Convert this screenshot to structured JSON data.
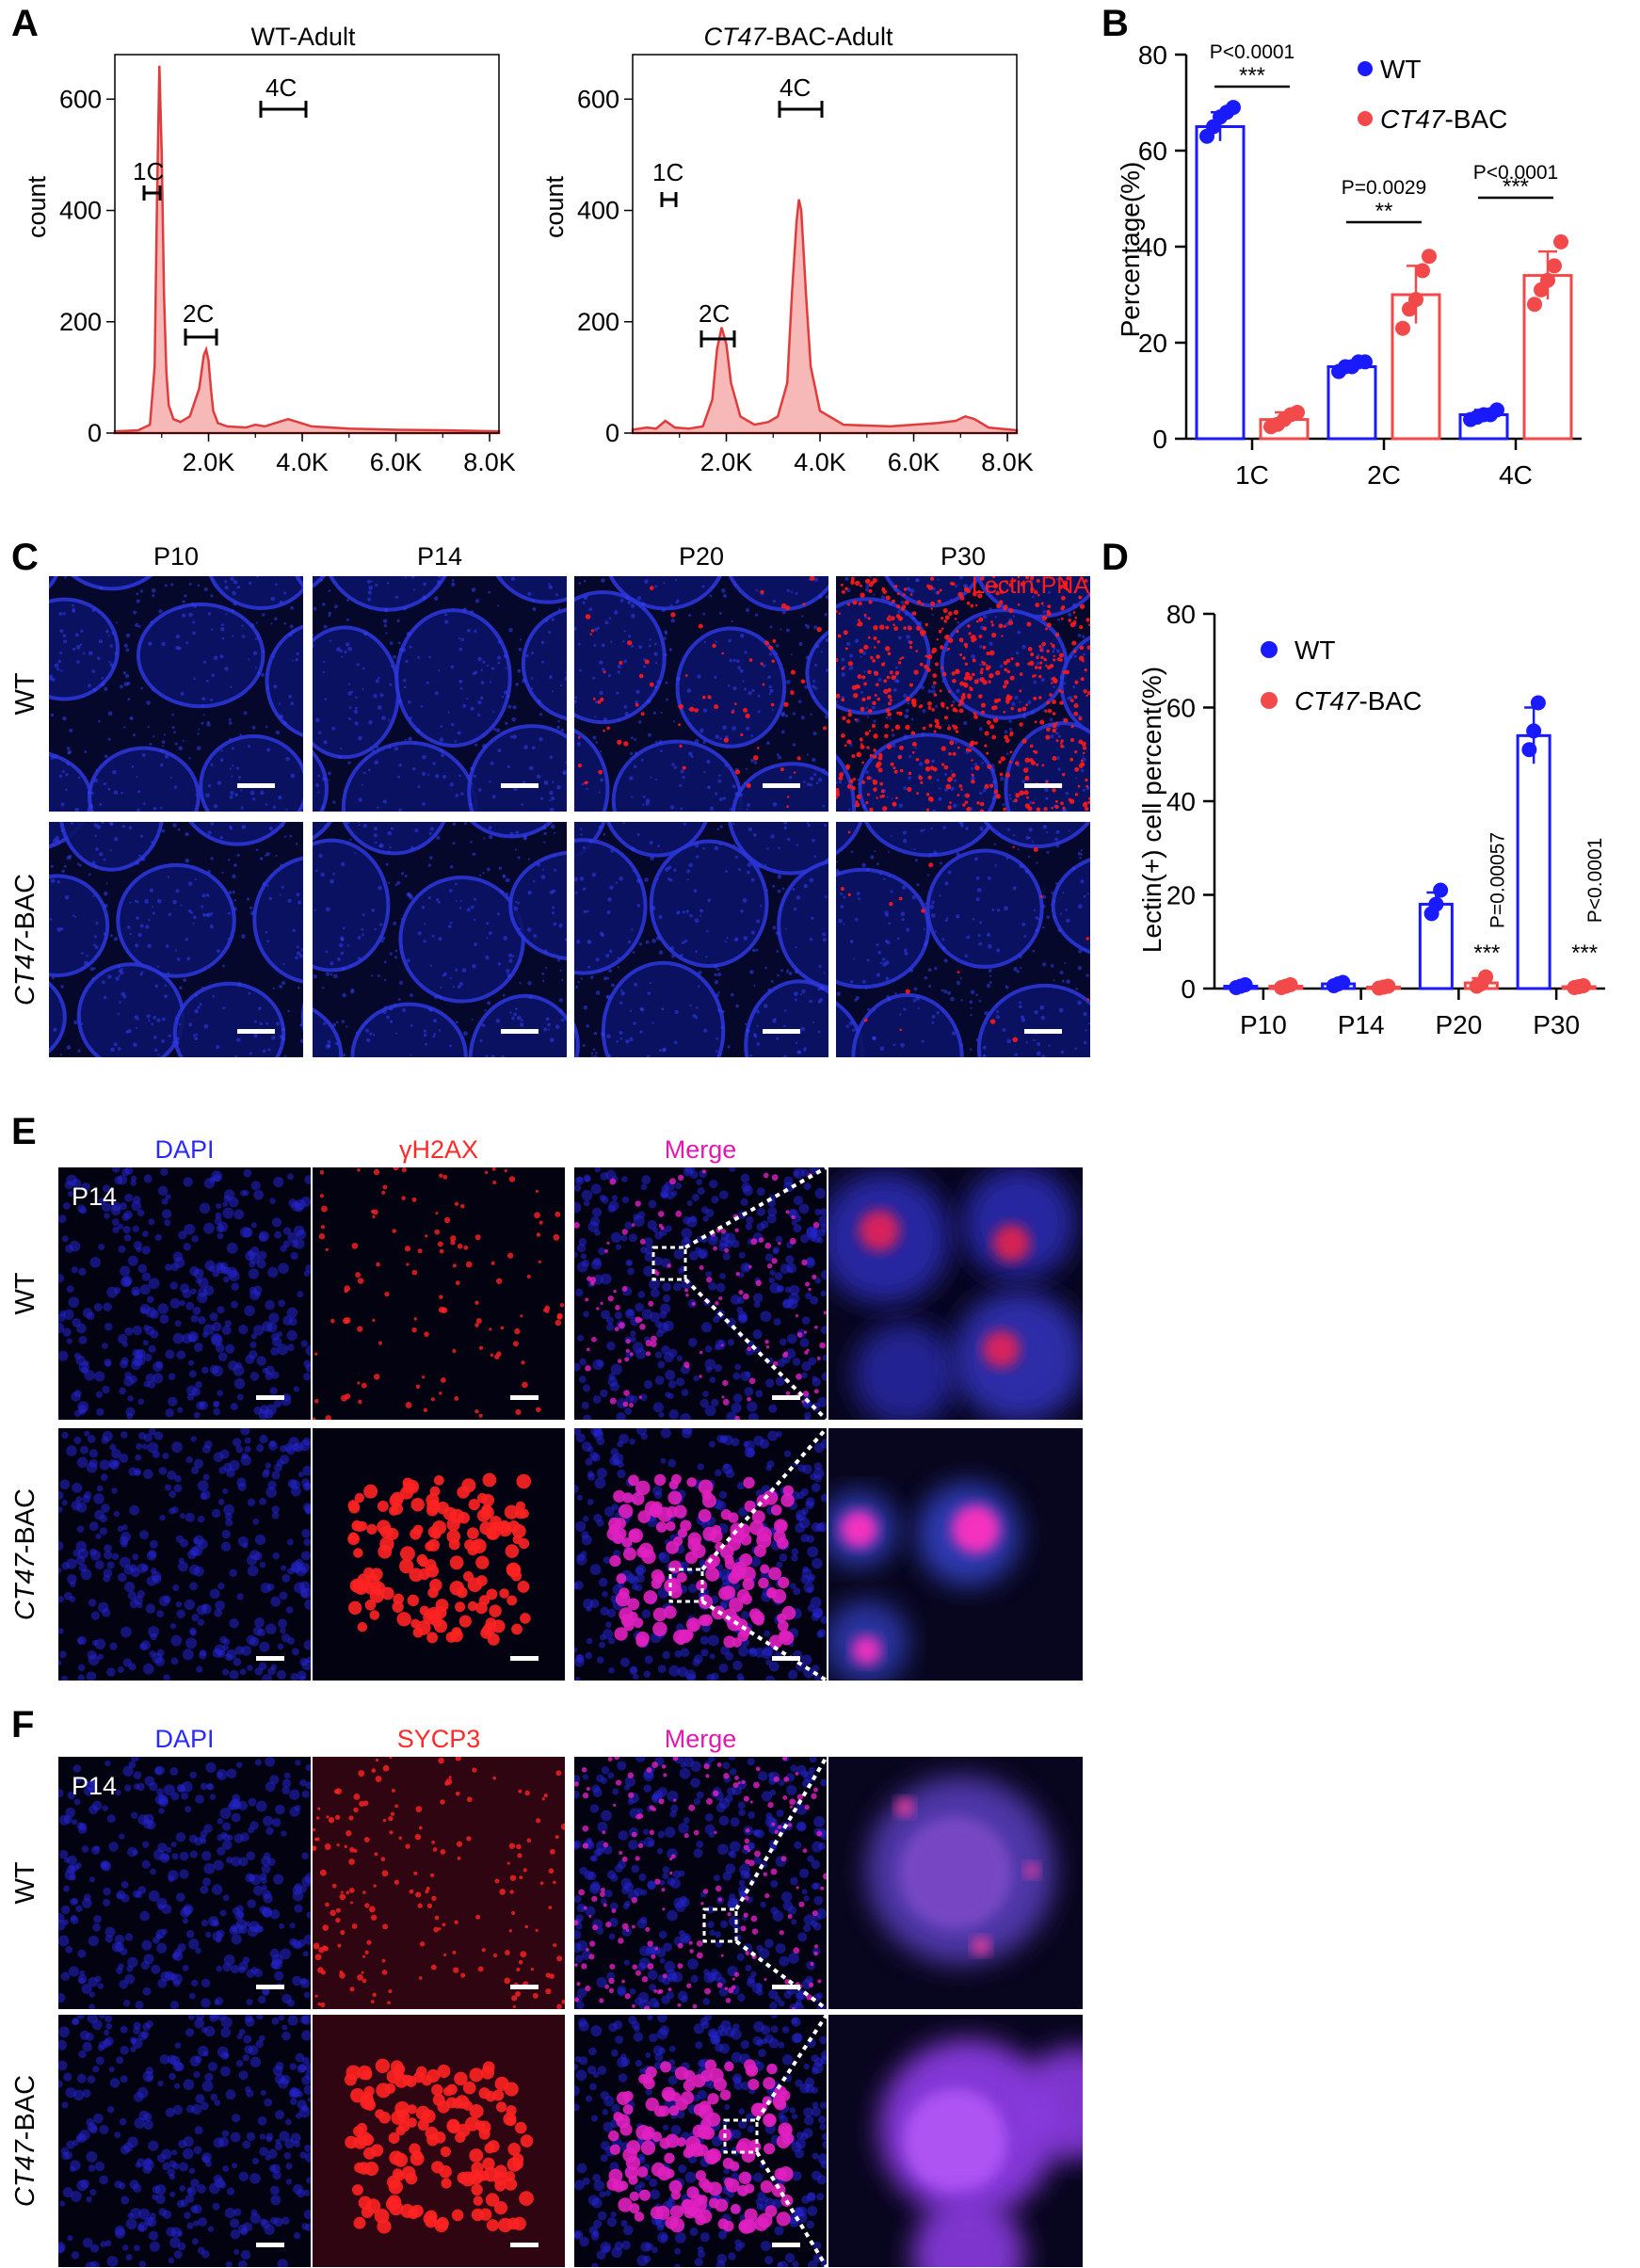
{
  "panel_labels": [
    "A",
    "B",
    "C",
    "D",
    "E",
    "F"
  ],
  "panel_A": {
    "histograms": [
      {
        "title": "WT-Adult",
        "title_italic": "",
        "title_rest": "",
        "xticks": [
          "2.0K",
          "4.0K",
          "6.0K",
          "8.0K"
        ],
        "yticks": [
          "0",
          "200",
          "400",
          "600"
        ],
        "ylabel": "count",
        "brackets": [
          "1C",
          "2C",
          "4C"
        ]
      },
      {
        "title": "",
        "title_italic": "CT47",
        "title_rest": "-BAC-Adult",
        "xticks": [
          "2.0K",
          "4.0K",
          "6.0K",
          "8.0K"
        ],
        "yticks": [
          "0",
          "200",
          "400",
          "600"
        ],
        "ylabel": "count",
        "brackets": [
          "1C",
          "2C",
          "4C"
        ]
      }
    ]
  },
  "chart_data": [
    {
      "type": "line",
      "panel": "A-left",
      "title": "WT-Adult",
      "ylabel": "count",
      "xlim": [
        0,
        8200
      ],
      "ylim": [
        0,
        680
      ],
      "x": [
        0,
        500,
        750,
        850,
        900,
        950,
        1000,
        1050,
        1100,
        1150,
        1250,
        1400,
        1600,
        1800,
        1900,
        1950,
        2000,
        2050,
        2100,
        2200,
        2400,
        2800,
        3000,
        3200,
        3500,
        3700,
        3900,
        4200,
        5000,
        6000,
        7000,
        8200
      ],
      "y": [
        3,
        5,
        15,
        120,
        420,
        660,
        500,
        250,
        110,
        50,
        25,
        20,
        30,
        80,
        140,
        150,
        130,
        80,
        40,
        18,
        12,
        10,
        15,
        12,
        20,
        25,
        20,
        12,
        8,
        6,
        5,
        3
      ],
      "series": [
        {
          "name": "",
          "color": "#e03c3c"
        }
      ]
    },
    {
      "type": "line",
      "panel": "A-right",
      "title": "CT47-BAC-Adult",
      "ylabel": "count",
      "xlim": [
        0,
        8200
      ],
      "ylim": [
        0,
        680
      ],
      "x": [
        0,
        300,
        500,
        700,
        900,
        1200,
        1500,
        1700,
        1800,
        1900,
        2000,
        2100,
        2300,
        2600,
        2900,
        3100,
        3300,
        3400,
        3500,
        3550,
        3600,
        3700,
        3800,
        4000,
        4500,
        5500,
        6500,
        6900,
        7100,
        7300,
        7600,
        8200
      ],
      "y": [
        6,
        10,
        8,
        22,
        10,
        8,
        12,
        60,
        150,
        190,
        160,
        90,
        30,
        15,
        20,
        30,
        90,
        250,
        380,
        420,
        400,
        250,
        120,
        40,
        15,
        12,
        18,
        22,
        30,
        25,
        10,
        5
      ],
      "series": [
        {
          "name": "",
          "color": "#e03c3c"
        }
      ]
    },
    {
      "type": "bar",
      "panel": "B",
      "ylabel": "Percentage(%)",
      "xlabel": "",
      "ylim": [
        0,
        80
      ],
      "yticks": [
        "0",
        "20",
        "40",
        "60",
        "80"
      ],
      "categories": [
        "1C",
        "2C",
        "4C"
      ],
      "series": [
        {
          "name": "WT",
          "name_italic": "",
          "name_rest": "WT",
          "color": "#1a1aff",
          "values": [
            65,
            15,
            5
          ],
          "errors": [
            3,
            1,
            1
          ],
          "points": [
            [
              63,
              65,
              67,
              68,
              69
            ],
            [
              14,
              15,
              15,
              16,
              16
            ],
            [
              4,
              4.5,
              5,
              5,
              6
            ]
          ]
        },
        {
          "name": "CT47-BAC",
          "name_italic": "CT47",
          "name_rest": "-BAC",
          "color": "#f24a4a",
          "values": [
            4,
            30,
            34
          ],
          "errors": [
            1.5,
            6,
            5
          ],
          "points": [
            [
              2.5,
              3,
              4,
              5,
              5.5
            ],
            [
              23,
              27,
              29,
              35,
              38
            ],
            [
              28,
              31,
              33,
              36,
              41
            ]
          ]
        }
      ],
      "annotations": [
        {
          "category": "1C",
          "p": "P<0.0001",
          "stars": "***"
        },
        {
          "category": "2C",
          "p": "P=0.0029",
          "stars": "**"
        },
        {
          "category": "4C",
          "p": "P<0.0001",
          "stars": "***"
        }
      ]
    },
    {
      "type": "bar",
      "panel": "D",
      "ylabel": "Lectin(+) cell percent(%)",
      "xlabel": "",
      "ylim": [
        0,
        80
      ],
      "yticks": [
        "0",
        "20",
        "40",
        "60",
        "80"
      ],
      "categories": [
        "P10",
        "P14",
        "P20",
        "P30"
      ],
      "series": [
        {
          "name": "WT",
          "name_italic": "",
          "name_rest": "WT",
          "color": "#1a1aff",
          "values": [
            0.5,
            1,
            18,
            54
          ],
          "errors": [
            0.3,
            0.3,
            2.5,
            6
          ],
          "points": [
            [
              0.2,
              0.5,
              0.8
            ],
            [
              0.6,
              1,
              1.3
            ],
            [
              16,
              18,
              21
            ],
            [
              51,
              55,
              61
            ]
          ]
        },
        {
          "name": "CT47-BAC",
          "name_italic": "CT47",
          "name_rest": "-BAC",
          "color": "#f24a4a",
          "values": [
            0.5,
            0.3,
            1.2,
            0.4
          ],
          "errors": [
            0.3,
            0.2,
            1,
            0.3
          ],
          "points": [
            [
              0.2,
              0.5,
              0.8
            ],
            [
              0.1,
              0.3,
              0.5
            ],
            [
              0.5,
              1,
              2.5
            ],
            [
              0.2,
              0.4,
              0.6
            ]
          ]
        }
      ],
      "annotations": [
        {
          "category": "P20",
          "p": "P=0.00057",
          "stars": "***"
        },
        {
          "category": "P30",
          "p": "P<0.0001",
          "stars": "***"
        }
      ]
    }
  ],
  "panel_C": {
    "columns": [
      "P10",
      "P14",
      "P20",
      "P30"
    ],
    "rows": [
      {
        "label": "WT",
        "italic": "",
        "rest": "WT"
      },
      {
        "label": "CT47-BAC",
        "italic": "CT47",
        "rest": "-BAC"
      }
    ],
    "stain_label": "Lectin PNA",
    "stain_color": "#ff1a1a",
    "red_density": [
      [
        0,
        0,
        0.08,
        0.7
      ],
      [
        0,
        0,
        0,
        0.02
      ]
    ]
  },
  "panel_E": {
    "columns": [
      "DAPI",
      "γH2AX",
      "Merge"
    ],
    "column_colors": [
      "#2a2aff",
      "#ff2a2a",
      "#e01ab0"
    ],
    "age_label": "P14",
    "rows": [
      {
        "label": "WT",
        "italic": "",
        "rest": "WT"
      },
      {
        "label": "CT47-BAC",
        "italic": "CT47",
        "rest": "-BAC"
      }
    ]
  },
  "panel_F": {
    "columns": [
      "DAPI",
      "SYCP3",
      "Merge"
    ],
    "column_colors": [
      "#2a2aff",
      "#ff2a2a",
      "#e01ab0"
    ],
    "age_label": "P14",
    "rows": [
      {
        "label": "WT",
        "italic": "",
        "rest": "WT"
      },
      {
        "label": "CT47-BAC",
        "italic": "CT47",
        "rest": "-BAC"
      }
    ]
  },
  "colors": {
    "wt": "#1a1aff",
    "bac": "#f24a4a",
    "histogram_fill": "#f7b8b8",
    "histogram_line": "#e03c3c",
    "micrograph_bg": "#050518"
  }
}
